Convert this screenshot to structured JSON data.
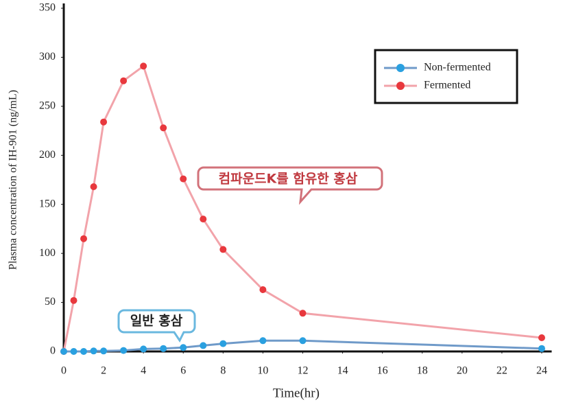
{
  "chart_data": {
    "type": "line",
    "x_label": "Time(hr)",
    "y_label": "Plasma concentration of IH-901 (ng/mL)",
    "x": [
      0,
      0.5,
      1,
      1.5,
      2,
      3,
      4,
      5,
      6,
      7,
      8,
      10,
      12,
      24
    ],
    "series": [
      {
        "name": "Non-fermented",
        "color": "#2aa0e0",
        "line_color": "#6f9ac9",
        "values": [
          0,
          0,
          0,
          0.5,
          0.5,
          1,
          2.5,
          3,
          4,
          6,
          8,
          11,
          11,
          3
        ]
      },
      {
        "name": "Fermented",
        "color": "#e8383d",
        "line_color": "#f2a3aa",
        "values": [
          0,
          52,
          115,
          168,
          234,
          276,
          291,
          228,
          176,
          135,
          104,
          63,
          39,
          14
        ]
      }
    ],
    "xlim": [
      0,
      24.5
    ],
    "ylim": [
      0,
      350
    ],
    "xticks": [
      0,
      2,
      4,
      6,
      8,
      10,
      12,
      14,
      16,
      18,
      20,
      22,
      24
    ],
    "yticks": [
      0,
      50,
      100,
      150,
      200,
      250,
      300,
      350
    ],
    "grid": false,
    "legend": "upper right",
    "annotations": [
      "컴파운드K를 함유한 홍삼",
      "일반 홍삼"
    ]
  }
}
